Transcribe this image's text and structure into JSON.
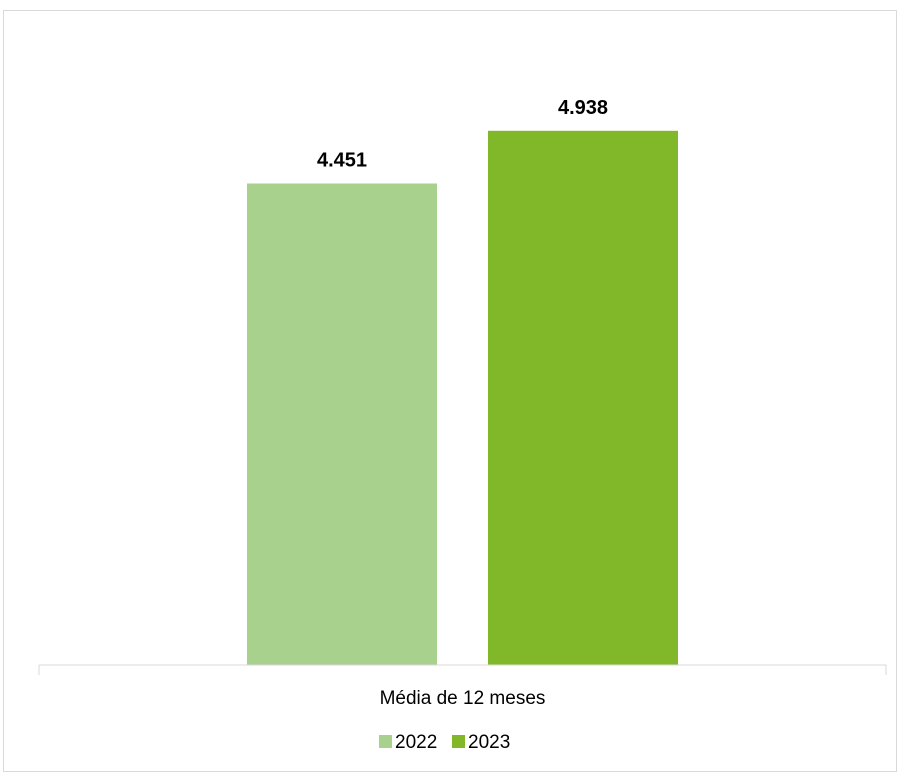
{
  "chart_data": {
    "type": "bar",
    "categories": [
      "Média de 12 meses"
    ],
    "series": [
      {
        "name": "2022",
        "values": [
          4451
        ],
        "label": "4.451",
        "color": "#a9d18e"
      },
      {
        "name": "2023",
        "values": [
          4938
        ],
        "label": "4.938",
        "color": "#80b82a"
      }
    ],
    "title": "",
    "xlabel": "",
    "ylabel": "",
    "ylim": [
      0,
      5500
    ],
    "grid": false,
    "legend_position": "bottom",
    "axis_color": "#d9d9d9"
  }
}
